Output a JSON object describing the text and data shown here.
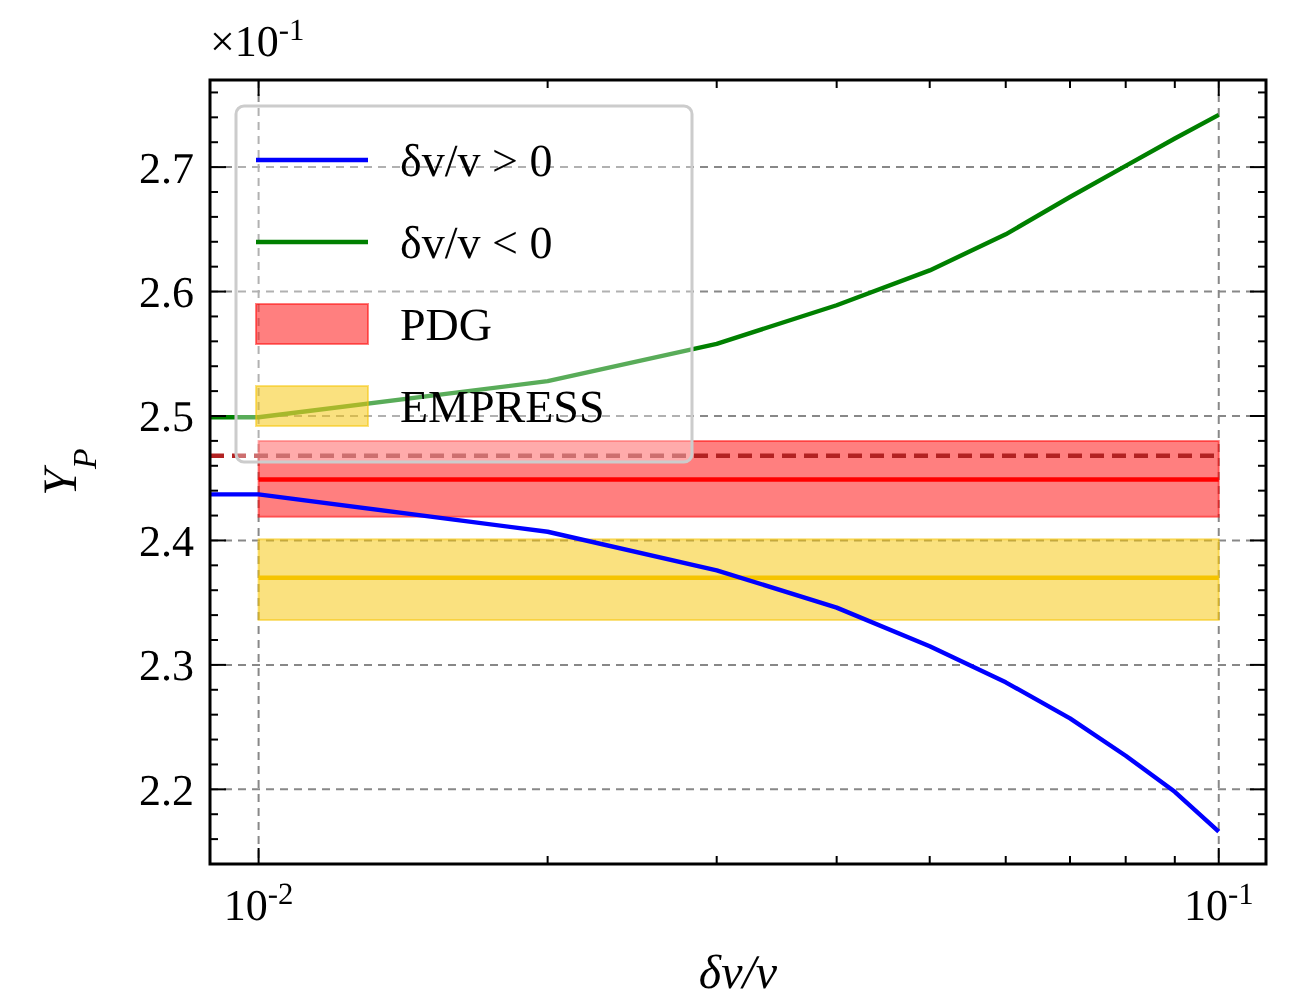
{
  "chart_data": {
    "type": "line",
    "xlabel": "δv/v",
    "ylabel": "Y$_{P}$",
    "annotations": [
      "×10$^{-1}$"
    ],
    "log": "x",
    "grid": true,
    "legend": "top left",
    "xlim": [
      0.0089,
      0.112
    ],
    "xticks": [
      {
        "value": 0.01,
        "label": "10$^{-2}$"
      },
      {
        "value": 0.02,
        "label": null
      },
      {
        "value": 0.03,
        "label": null
      },
      {
        "value": 0.04,
        "label": null
      },
      {
        "value": 0.05,
        "label": null
      },
      {
        "value": 0.06,
        "label": null
      },
      {
        "value": 0.07,
        "label": null
      },
      {
        "value": 0.08,
        "label": null
      },
      {
        "value": 0.09,
        "label": null
      },
      {
        "value": 0.1,
        "label": "10$^{-1}$"
      }
    ],
    "ylim": [
      2.14,
      2.77
    ],
    "yticks": [
      {
        "value": 2.16,
        "label": null
      },
      {
        "value": 2.18,
        "label": null
      },
      2.2,
      {
        "value": 2.22,
        "label": null
      },
      {
        "value": 2.24,
        "label": null
      },
      {
        "value": 2.26,
        "label": null
      },
      {
        "value": 2.28,
        "label": null
      },
      2.3,
      {
        "value": 2.32,
        "label": null
      },
      {
        "value": 2.34,
        "label": null
      },
      {
        "value": 2.36,
        "label": null
      },
      {
        "value": 2.38,
        "label": null
      },
      2.4,
      {
        "value": 2.42,
        "label": null
      },
      {
        "value": 2.44,
        "label": null
      },
      {
        "value": 2.46,
        "label": null
      },
      {
        "value": 2.48,
        "label": null
      },
      2.5,
      {
        "value": 2.52,
        "label": null
      },
      {
        "value": 2.54,
        "label": null
      },
      {
        "value": 2.56,
        "label": null
      },
      {
        "value": 2.58,
        "label": null
      },
      2.6,
      {
        "value": 2.62,
        "label": null
      },
      {
        "value": 2.64,
        "label": null
      },
      {
        "value": 2.66,
        "label": null
      },
      {
        "value": 2.68,
        "label": null
      },
      2.7,
      {
        "value": 2.72,
        "label": null
      },
      {
        "value": 2.74,
        "label": null
      },
      {
        "value": 2.76,
        "label": null
      }
    ],
    "series": [
      {
        "name": "δv/v > 0",
        "color": "#0000ff",
        "x": [
          0.0089,
          0.01,
          0.02,
          0.03,
          0.04,
          0.05,
          0.06,
          0.07,
          0.08,
          0.09,
          0.1
        ],
        "values": [
          2.437,
          2.437,
          2.407,
          2.376,
          2.346,
          2.315,
          2.286,
          2.257,
          2.227,
          2.198,
          2.166
        ]
      },
      {
        "name": "δv/v < 0",
        "color": "#008000",
        "x": [
          0.0089,
          0.01,
          0.02,
          0.03,
          0.04,
          0.05,
          0.06,
          0.07,
          0.08,
          0.09,
          0.1
        ],
        "values": [
          2.499,
          2.499,
          2.528,
          2.558,
          2.589,
          2.617,
          2.646,
          2.676,
          2.701,
          2.723,
          2.742
        ]
      },
      {
        "name": "PDG",
        "color": "#ff0000",
        "x": [
          0.01,
          0.1
        ],
        "values": [
          2.449,
          2.449
        ],
        "lower": [
          2.419,
          2.419
        ],
        "upper": [
          2.48,
          2.48
        ]
      },
      {
        "name": "EMPRESS",
        "color": "#f5c400",
        "x": [
          0.01,
          0.1
        ],
        "values": [
          2.37,
          2.37
        ],
        "lower": [
          2.336,
          2.336
        ],
        "upper": [
          2.401,
          2.401
        ]
      },
      {
        "color": "#b22222",
        "line_style": "dashed",
        "x": [
          0.0089,
          0.1
        ],
        "values": [
          2.468,
          2.468
        ]
      }
    ]
  }
}
